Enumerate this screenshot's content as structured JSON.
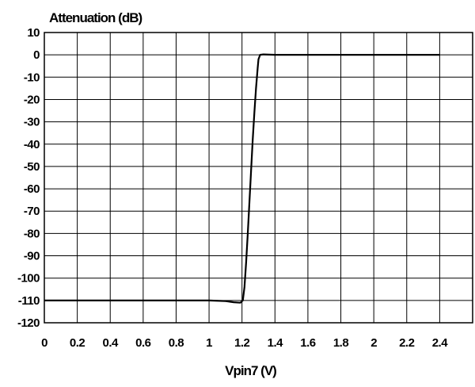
{
  "chart_data": {
    "type": "line",
    "title": "",
    "ylabel": "Attenuation (dB)",
    "xlabel": "Vpin7 (V)",
    "xlim": [
      0,
      2.6
    ],
    "ylim": [
      -120,
      10
    ],
    "x_ticks": [
      0,
      0.2,
      0.4,
      0.6,
      0.8,
      1,
      1.2,
      1.4,
      1.6,
      1.8,
      2,
      2.2,
      2.4
    ],
    "x_tick_labels": [
      "0",
      "0.2",
      "0.4",
      "0.6",
      "0.8",
      "1",
      "1.2",
      "1.4",
      "1.6",
      "1.8",
      "2",
      "2.2",
      "2.4"
    ],
    "y_ticks": [
      10,
      0,
      -10,
      -20,
      -30,
      -40,
      -50,
      -60,
      -70,
      -80,
      -90,
      -100,
      -110,
      -120
    ],
    "y_tick_labels": [
      "10",
      "0",
      "-10",
      "-20",
      "-30",
      "-40",
      "-50",
      "-60",
      "-70",
      "-80",
      "-90",
      "-100",
      "-110",
      "-120"
    ],
    "grid": true,
    "line_color": "#000000",
    "series": [
      {
        "x": [
          0,
          0.4,
          0.8,
          1.0,
          1.1,
          1.15,
          1.19,
          1.205,
          1.215,
          1.225,
          1.235,
          1.245,
          1.255,
          1.265,
          1.275,
          1.285,
          1.295,
          1.3,
          1.31,
          1.33,
          1.4,
          1.8,
          2.2,
          2.4
        ],
        "y": [
          -110,
          -110,
          -110,
          -110,
          -110.3,
          -110.8,
          -111,
          -110,
          -104,
          -93,
          -80,
          -66,
          -52,
          -38,
          -26,
          -15,
          -6,
          -2,
          0,
          0.2,
          0,
          0,
          0,
          0
        ]
      }
    ]
  }
}
